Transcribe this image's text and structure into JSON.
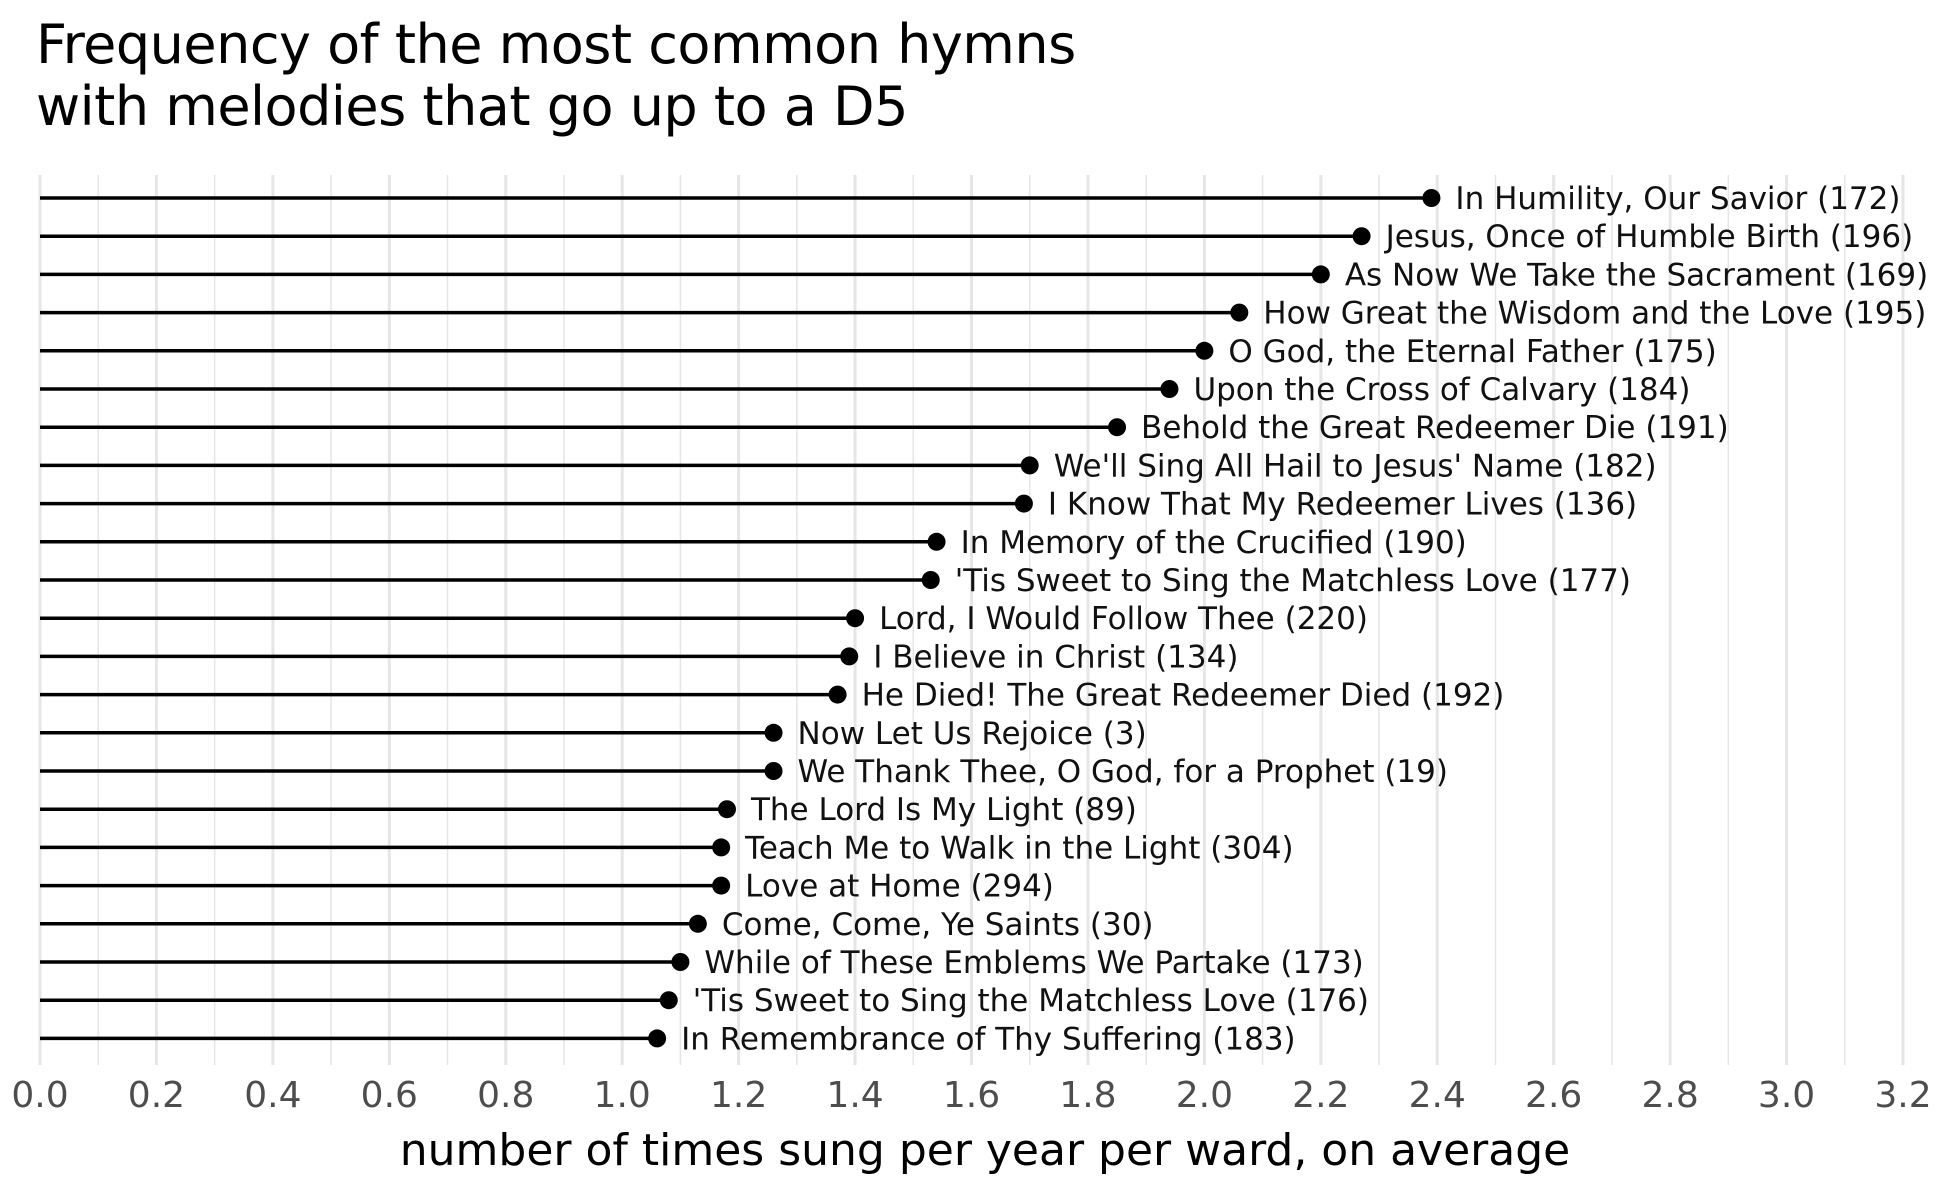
{
  "chart_data": {
    "type": "lollipop",
    "title": [
      "Frequency of the most common hymns",
      "with melodies that go up to a D5"
    ],
    "xlabel": "number of times sung per year per ward, on average",
    "ylabel": "",
    "xlim": [
      0,
      3.2
    ],
    "xticks": [
      "0.0",
      "0.2",
      "0.4",
      "0.6",
      "0.8",
      "1.0",
      "1.2",
      "1.4",
      "1.6",
      "1.8",
      "2.0",
      "2.2",
      "2.4",
      "2.6",
      "2.8",
      "3.0",
      "3.2"
    ],
    "grid": "vertical",
    "categories": [
      "In Humility, Our Savior (172)",
      "Jesus, Once of Humble Birth (196)",
      "As Now We Take the Sacrament (169)",
      "How Great the Wisdom and the Love (195)",
      "O God, the Eternal Father (175)",
      "Upon the Cross of Calvary (184)",
      "Behold the Great Redeemer Die (191)",
      "We'll Sing All Hail to Jesus' Name (182)",
      "I Know That My Redeemer Lives (136)",
      "In Memory of the Crucified (190)",
      "'Tis Sweet to Sing the Matchless Love (177)",
      "Lord, I Would Follow Thee (220)",
      "I Believe in Christ (134)",
      "He Died! The Great Redeemer Died (192)",
      "Now Let Us Rejoice (3)",
      "We Thank Thee, O God, for a Prophet (19)",
      "The Lord Is My Light (89)",
      "Teach Me to Walk in the Light (304)",
      "Love at Home (294)",
      "Come, Come, Ye Saints (30)",
      "While of These Emblems We Partake (173)",
      "'Tis Sweet to Sing the Matchless Love (176)",
      "In Remembrance of Thy Suffering (183)"
    ],
    "values": [
      2.39,
      2.27,
      2.2,
      2.06,
      2.0,
      1.94,
      1.85,
      1.7,
      1.69,
      1.54,
      1.53,
      1.4,
      1.39,
      1.37,
      1.26,
      1.26,
      1.18,
      1.17,
      1.17,
      1.13,
      1.1,
      1.08,
      1.06
    ],
    "line_color": "#000000",
    "grid_color": "#e6e6e6"
  }
}
